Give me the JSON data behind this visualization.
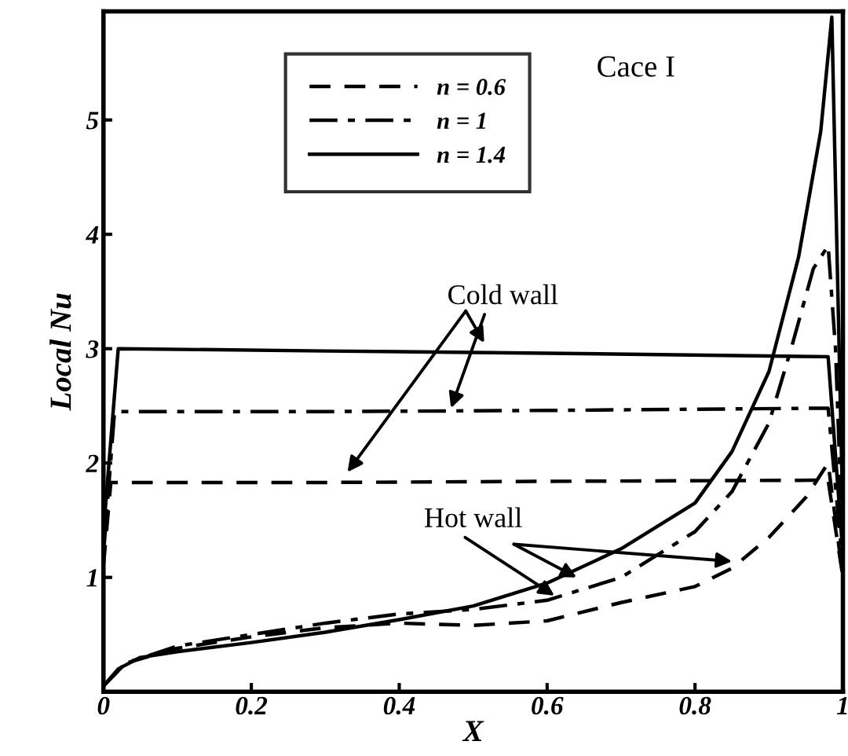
{
  "chart_data": {
    "type": "line",
    "title": "Cace I",
    "xlabel": "X",
    "ylabel": "Local Nu",
    "xlim": [
      0,
      1
    ],
    "ylim": [
      0,
      5.95
    ],
    "xticks": [
      0,
      0.2,
      0.4,
      0.6,
      0.8,
      1
    ],
    "yticks": [
      1,
      2,
      3,
      4,
      5
    ],
    "grid": false,
    "legend": "top left",
    "marker": "none",
    "series": [
      {
        "name": "n = 0.6",
        "color": "#000000",
        "line_style": "dashed",
        "x": [
          0,
          0.01,
          0.3,
          0.6,
          0.98,
          1.0
        ],
        "values": [
          1.1,
          1.83,
          1.83,
          1.84,
          1.85,
          1.0
        ]
      },
      {
        "name": "n = 1",
        "color": "#000000",
        "line_style": "dashdot",
        "x": [
          0,
          0.015,
          0.3,
          0.6,
          0.98,
          1.0
        ],
        "values": [
          1.2,
          2.45,
          2.45,
          2.46,
          2.48,
          1.1
        ]
      },
      {
        "name": "n = 1.4",
        "color": "#000000",
        "line_style": "solid",
        "x": [
          0,
          0.02,
          0.3,
          0.6,
          0.98,
          1.0
        ],
        "values": [
          1.4,
          3.0,
          2.98,
          2.96,
          2.93,
          1.2
        ]
      },
      {
        "color": "#000000",
        "line_style": "dashed",
        "x": [
          0,
          0.03,
          0.1,
          0.2,
          0.3,
          0.4,
          0.5,
          0.6,
          0.7,
          0.8,
          0.85,
          0.9,
          0.95,
          0.98,
          1.0
        ],
        "values": [
          0.05,
          0.25,
          0.38,
          0.48,
          0.56,
          0.6,
          0.58,
          0.62,
          0.78,
          0.92,
          1.08,
          1.35,
          1.7,
          2.0,
          1.0
        ]
      },
      {
        "color": "#000000",
        "line_style": "dashdot",
        "x": [
          0,
          0.03,
          0.1,
          0.2,
          0.3,
          0.4,
          0.5,
          0.6,
          0.7,
          0.8,
          0.85,
          0.9,
          0.93,
          0.96,
          0.98,
          0.99,
          1.0
        ],
        "values": [
          0.05,
          0.25,
          0.4,
          0.5,
          0.6,
          0.68,
          0.72,
          0.8,
          1.0,
          1.4,
          1.75,
          2.35,
          3.0,
          3.7,
          3.9,
          3.0,
          1.2
        ]
      },
      {
        "color": "#000000",
        "line_style": "solid",
        "x": [
          0,
          0.02,
          0.05,
          0.1,
          0.2,
          0.3,
          0.4,
          0.5,
          0.6,
          0.7,
          0.8,
          0.85,
          0.9,
          0.94,
          0.97,
          0.985,
          1.0
        ],
        "values": [
          0.05,
          0.2,
          0.3,
          0.35,
          0.43,
          0.52,
          0.63,
          0.75,
          0.95,
          1.25,
          1.65,
          2.1,
          2.8,
          3.8,
          4.9,
          5.9,
          1.5
        ]
      }
    ],
    "annotations": [
      {
        "text": "Cold wall",
        "x": 0.47,
        "y": 2.48
      },
      {
        "text": "Hot wall",
        "x": 0.61,
        "y": 0.84
      }
    ]
  }
}
